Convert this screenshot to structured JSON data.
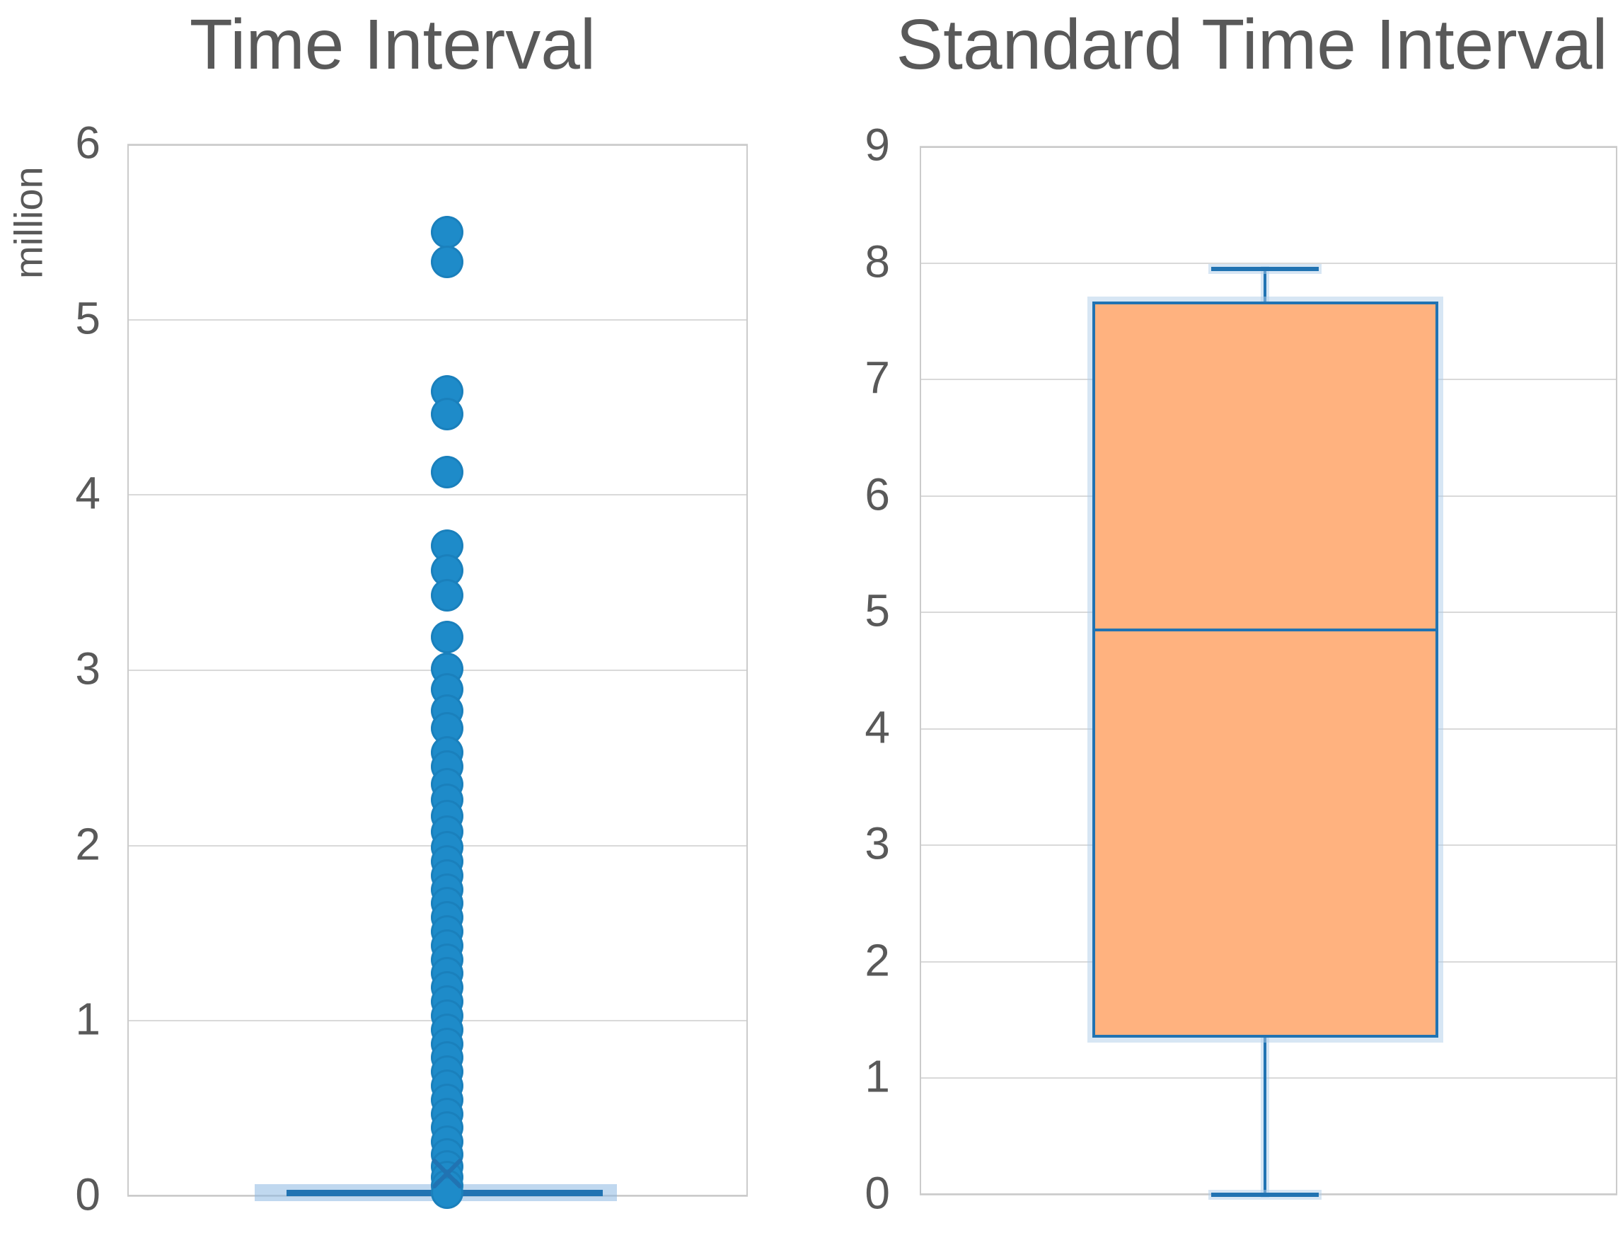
{
  "figure_background": "#FFFFFF",
  "colors": {
    "series_blue": "#2173B2",
    "outlier_dot_blue": "#1E8BC9",
    "box_fill_orange": "#FFB27F",
    "gridline_gray": "#D9D9D9",
    "text_gray": "#595959"
  },
  "chart_data": [
    {
      "type": "box",
      "title": "Time Interval",
      "y_axis_title": "million",
      "y_ticks": [
        6,
        5,
        4,
        3,
        2,
        1,
        0
      ],
      "ylim": [
        0,
        6
      ],
      "y_max": 6,
      "grid": true,
      "legend": false,
      "box": {
        "min": 0,
        "q1": 0.005,
        "median": 0.02,
        "q3": 0.05,
        "max": 0.09,
        "mean": 0.13
      },
      "box_collapsed_at_zero": true,
      "outliers_million": [
        5.5,
        5.33,
        4.59,
        4.46,
        4.13,
        3.71,
        3.57,
        3.43,
        3.19,
        3.01,
        2.89,
        2.77,
        2.67,
        2.53,
        2.45,
        2.35,
        2.26,
        2.17,
        2.08,
        1.99,
        1.91,
        1.83,
        1.75,
        1.67,
        1.59,
        1.51,
        1.43,
        1.35,
        1.27,
        1.19,
        1.11,
        1.03,
        0.95,
        0.87,
        0.79,
        0.71,
        0.63,
        0.55,
        0.47,
        0.39,
        0.31,
        0.24,
        0.17,
        0.11,
        0.06,
        0.02
      ]
    },
    {
      "type": "box",
      "title": "Standard Time Interval",
      "y_axis_title": "",
      "y_ticks": [
        9,
        8,
        7,
        6,
        5,
        4,
        3,
        2,
        1,
        0
      ],
      "ylim": [
        0,
        9
      ],
      "y_max": 9,
      "grid": true,
      "legend": false,
      "box": {
        "min": 0,
        "q1": 1.35,
        "median": 4.85,
        "q3": 7.67,
        "max": 7.95
      },
      "outliers_million": []
    }
  ]
}
